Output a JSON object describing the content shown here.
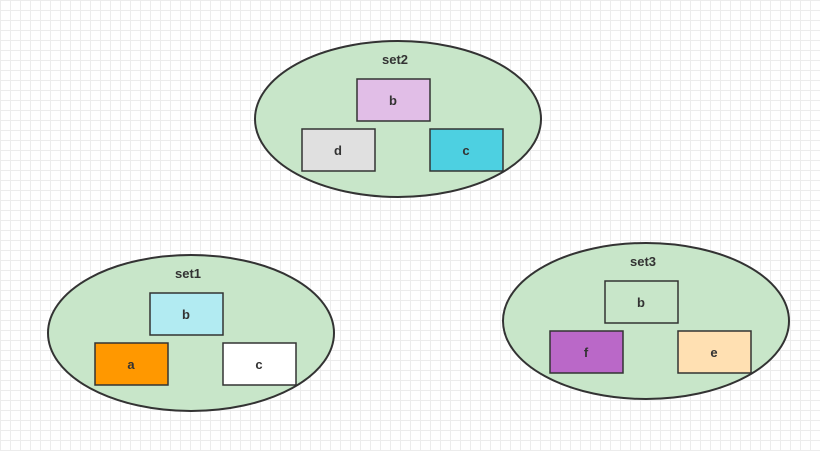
{
  "sets": [
    {
      "title": "set2",
      "fill": "#c8e6c9",
      "items": [
        {
          "label": "b",
          "color": "#e1bee7"
        },
        {
          "label": "d",
          "color": "#e0e0e0"
        },
        {
          "label": "c",
          "color": "#4dd0e1"
        }
      ]
    },
    {
      "title": "set1",
      "fill": "#c8e6c9",
      "items": [
        {
          "label": "b",
          "color": "#b2ebf2"
        },
        {
          "label": "a",
          "color": "#ff9800"
        },
        {
          "label": "c",
          "color": "#ffffff"
        }
      ]
    },
    {
      "title": "set3",
      "fill": "#c8e6c9",
      "items": [
        {
          "label": "b",
          "color": "#c8e6c9"
        },
        {
          "label": "f",
          "color": "#ba68c8"
        },
        {
          "label": "e",
          "color": "#ffe0b2"
        }
      ]
    }
  ]
}
